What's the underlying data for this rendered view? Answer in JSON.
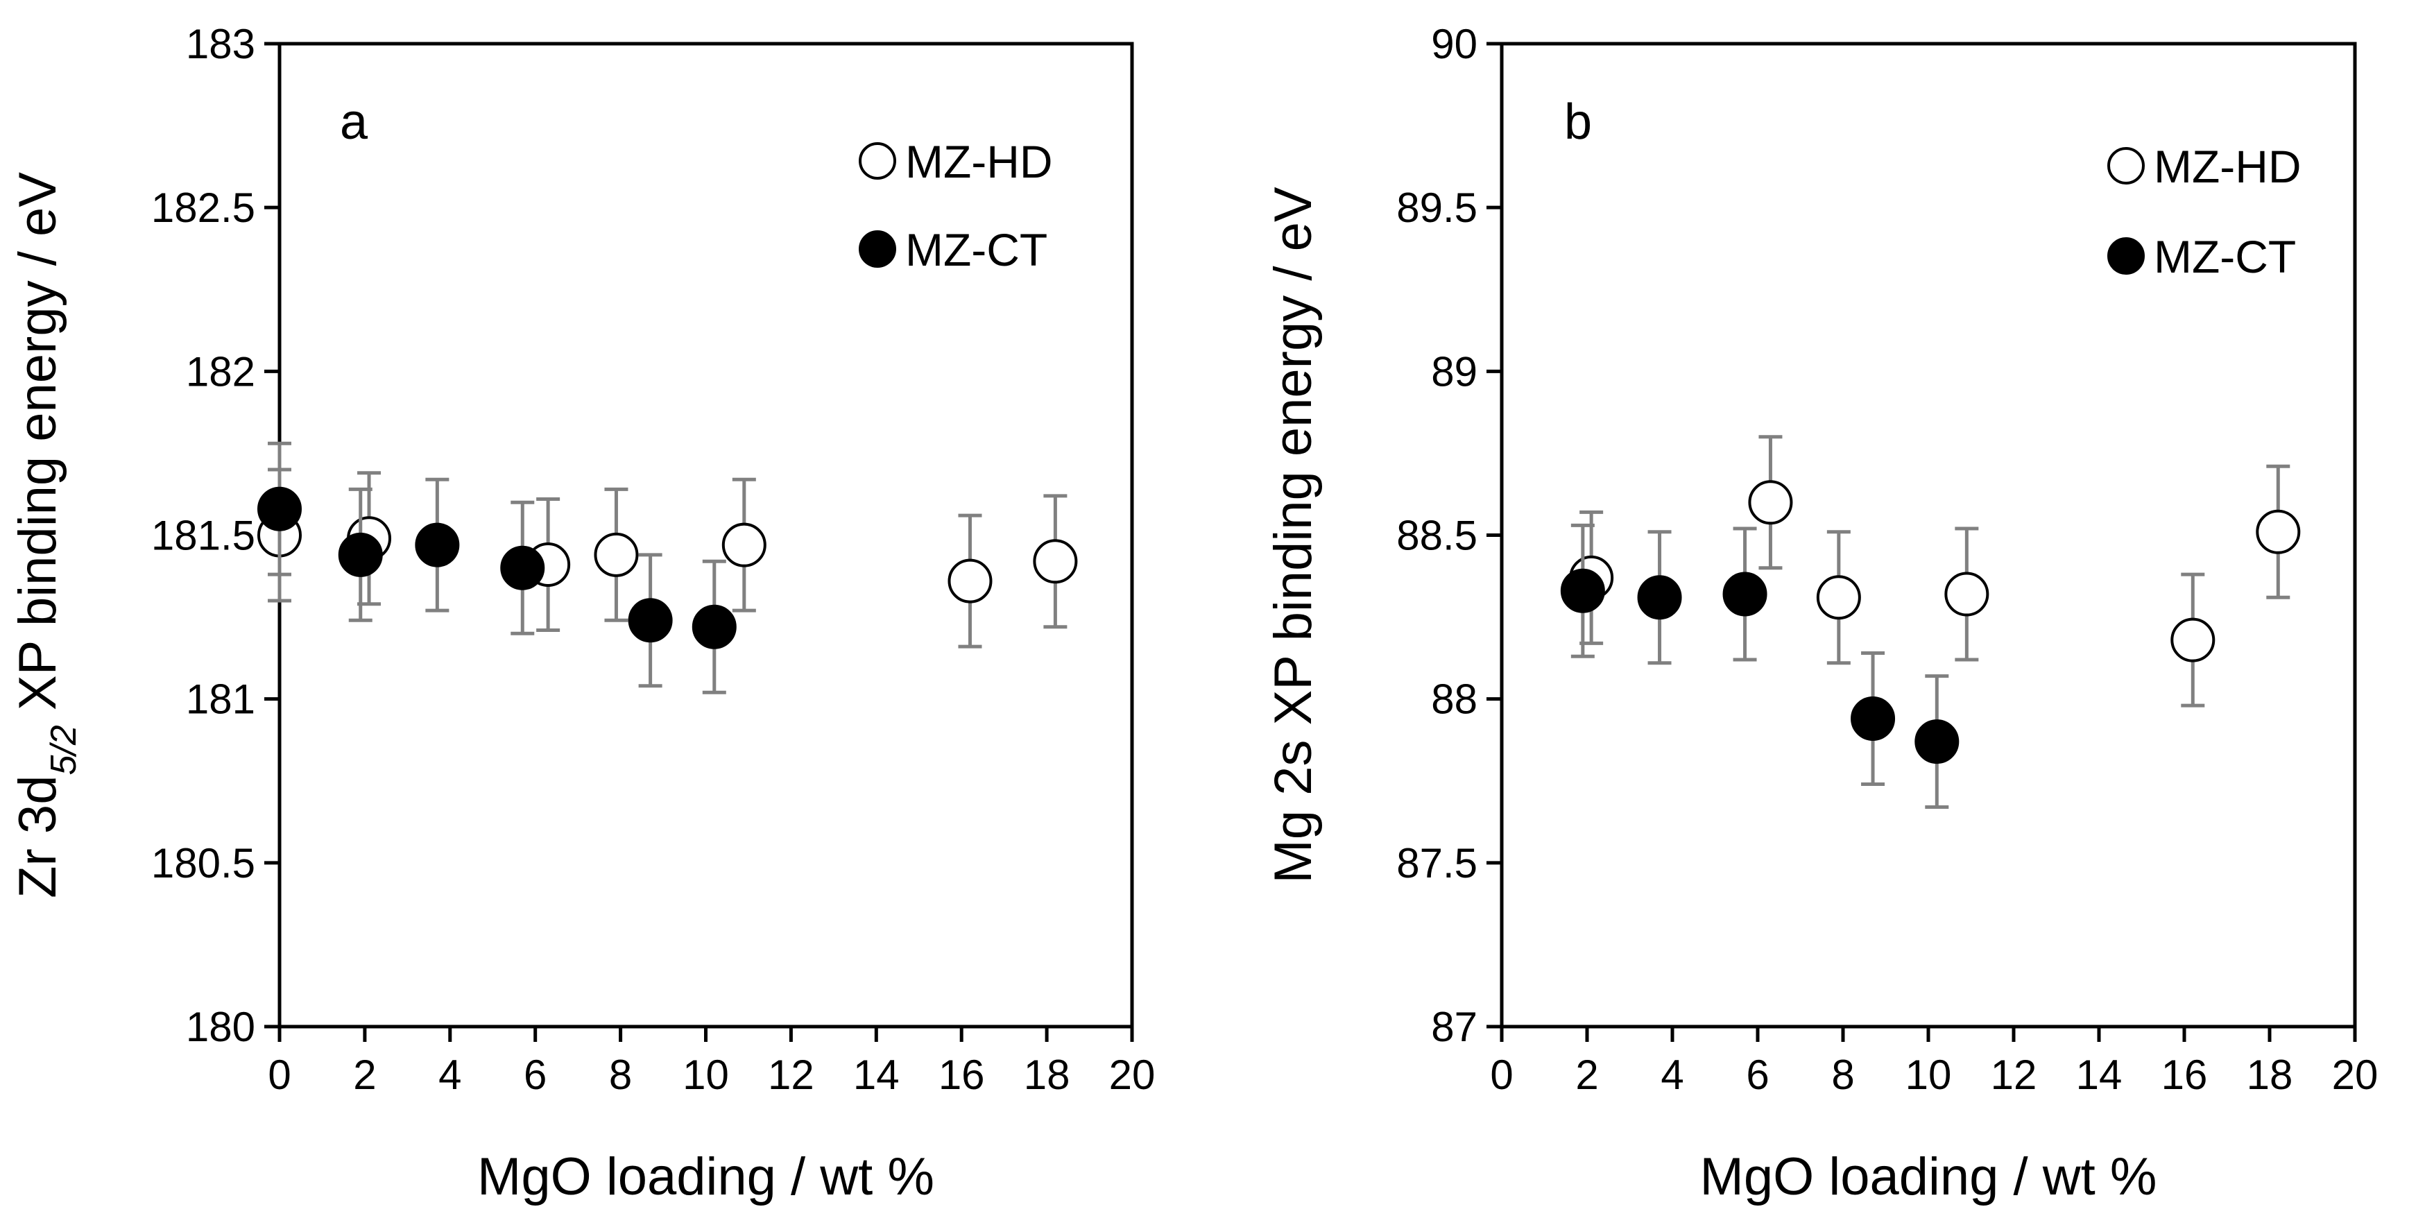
{
  "chart_data": [
    {
      "type": "scatter",
      "panel_label": "a",
      "xlabel": "MgO loading / wt %",
      "ylabel_prefix": "Zr 3d",
      "ylabel_subscript": "5/2",
      "ylabel_suffix": " XP binding energy / eV",
      "xlim": [
        0,
        20
      ],
      "ylim": [
        180,
        183
      ],
      "xticks": [
        0,
        2,
        4,
        6,
        8,
        10,
        12,
        14,
        16,
        18,
        20
      ],
      "yticks": [
        180,
        180.5,
        181,
        181.5,
        182,
        182.5,
        183
      ],
      "error": 0.2,
      "legend_position": "top-right",
      "series": [
        {
          "name": "MZ-HD",
          "marker": "open-circle",
          "x": [
            0,
            2.1,
            6.3,
            7.9,
            10.9,
            16.2,
            18.2
          ],
          "y": [
            181.5,
            181.49,
            181.41,
            181.44,
            181.47,
            181.36,
            181.42
          ]
        },
        {
          "name": "MZ-CT",
          "marker": "filled-circle",
          "x": [
            0,
            1.9,
            3.7,
            5.7,
            8.7,
            10.2
          ],
          "y": [
            181.58,
            181.44,
            181.47,
            181.4,
            181.24,
            181.22
          ]
        }
      ]
    },
    {
      "type": "scatter",
      "panel_label": "b",
      "xlabel": "MgO loading / wt %",
      "ylabel": "Mg 2s XP binding energy / eV",
      "xlim": [
        0,
        20
      ],
      "ylim": [
        87,
        90
      ],
      "xticks": [
        0,
        2,
        4,
        6,
        8,
        10,
        12,
        14,
        16,
        18,
        20
      ],
      "yticks": [
        87,
        87.5,
        88,
        88.5,
        89,
        89.5,
        90
      ],
      "error": 0.2,
      "legend_position": "top-right",
      "series": [
        {
          "name": "MZ-HD",
          "marker": "open-circle",
          "x": [
            2.1,
            6.3,
            7.9,
            10.9,
            16.2,
            18.2
          ],
          "y": [
            88.37,
            88.6,
            88.31,
            88.32,
            88.18,
            88.51
          ]
        },
        {
          "name": "MZ-CT",
          "marker": "filled-circle",
          "x": [
            1.9,
            3.7,
            5.7,
            8.7,
            10.2
          ],
          "y": [
            88.33,
            88.31,
            88.32,
            87.94,
            87.87
          ]
        }
      ]
    }
  ]
}
